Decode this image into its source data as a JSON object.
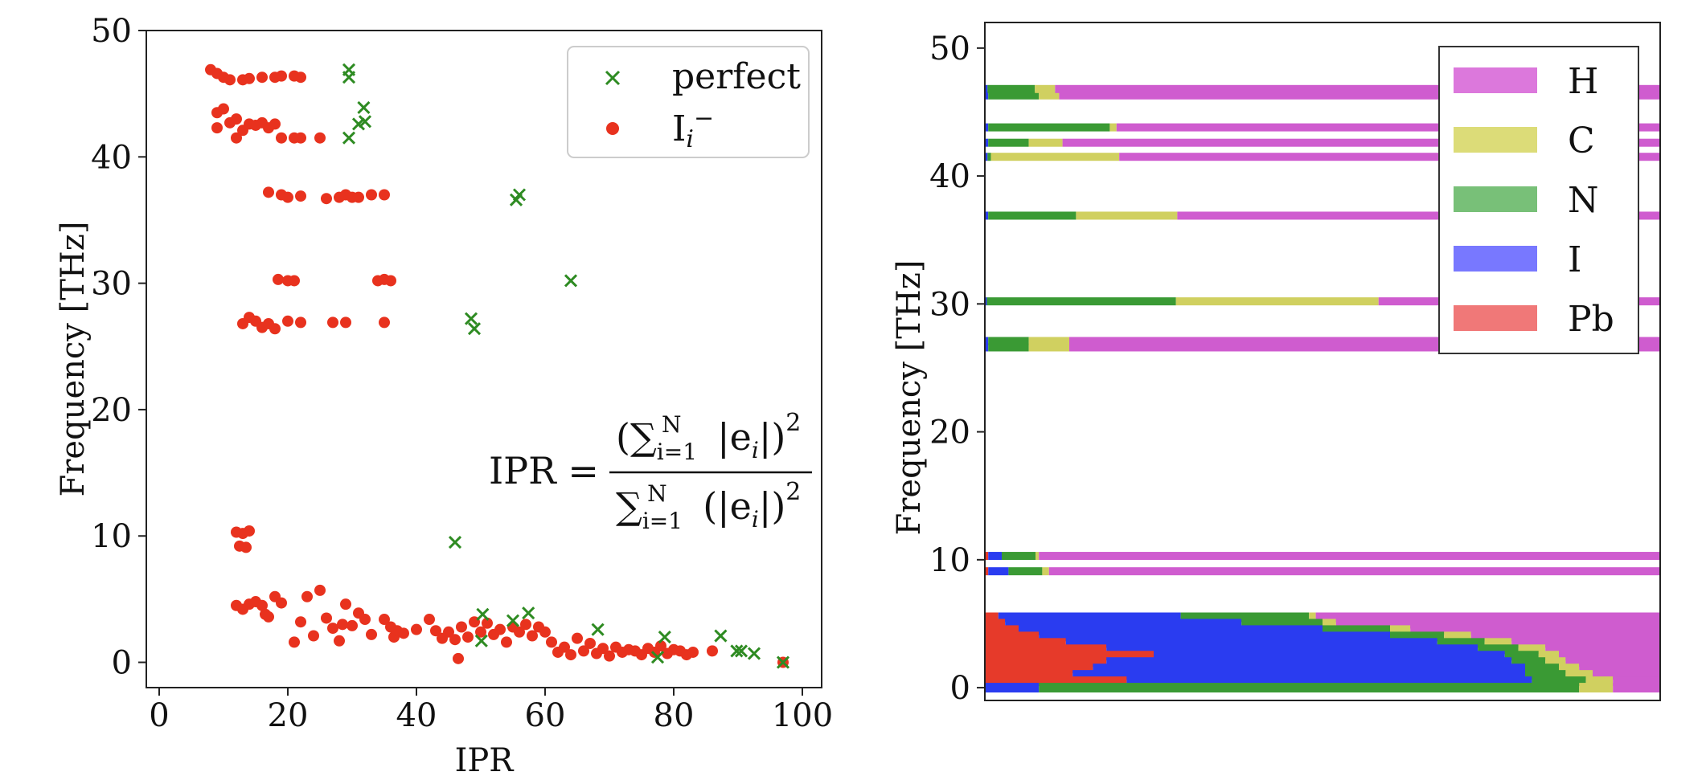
{
  "chart_data": [
    {
      "type": "scatter",
      "xlabel": "IPR",
      "ylabel": "Frequency [THz]",
      "xlim": [
        -2,
        103
      ],
      "ylim": [
        -2,
        50
      ],
      "xticks": [
        0,
        20,
        40,
        60,
        80,
        100
      ],
      "yticks": [
        0,
        10,
        20,
        30,
        40,
        50
      ],
      "legend_position": "top-right",
      "annotation": "IPR = (∑ᵢ₌₁ᴺ |eᵢ|)² / ∑ᵢ₌₁ᴺ (|eᵢ|)²",
      "series": [
        {
          "name": "perfect",
          "marker": "x",
          "color": "#2e8b22",
          "points": [
            [
              29.5,
              46.9
            ],
            [
              29.5,
              46.3
            ],
            [
              29.5,
              41.5
            ],
            [
              31,
              42.6
            ],
            [
              31.8,
              43.9
            ],
            [
              32,
              42.8
            ],
            [
              55.5,
              36.6
            ],
            [
              56,
              37.0
            ],
            [
              64,
              30.2
            ],
            [
              48.5,
              27.2
            ],
            [
              49,
              26.4
            ],
            [
              46,
              9.5
            ],
            [
              50.3,
              3.8
            ],
            [
              50.1,
              1.7
            ],
            [
              55,
              3.3
            ],
            [
              57.4,
              3.9
            ],
            [
              68.2,
              2.6
            ],
            [
              77.5,
              0.4
            ],
            [
              78.6,
              2.0
            ],
            [
              87.3,
              2.1
            ],
            [
              89.8,
              0.9
            ],
            [
              90.5,
              0.9
            ],
            [
              92.5,
              0.7
            ],
            [
              97,
              0.0
            ]
          ]
        },
        {
          "name": "I_i^-",
          "marker": "o",
          "color": "#e8321e",
          "points": [
            [
              8,
              46.9
            ],
            [
              9,
              46.6
            ],
            [
              10,
              46.3
            ],
            [
              11,
              46.1
            ],
            [
              13,
              46.1
            ],
            [
              14,
              46.2
            ],
            [
              16,
              46.3
            ],
            [
              18,
              46.3
            ],
            [
              19,
              46.4
            ],
            [
              21,
              46.4
            ],
            [
              22,
              46.3
            ],
            [
              9,
              43.5
            ],
            [
              10,
              43.8
            ],
            [
              9,
              42.3
            ],
            [
              11,
              42.7
            ],
            [
              12,
              43.0
            ],
            [
              13,
              42.1
            ],
            [
              14,
              42.6
            ],
            [
              15,
              42.5
            ],
            [
              16,
              42.7
            ],
            [
              17,
              42.3
            ],
            [
              18,
              42.6
            ],
            [
              12,
              41.5
            ],
            [
              19,
              41.5
            ],
            [
              21,
              41.5
            ],
            [
              22,
              41.5
            ],
            [
              25,
              41.5
            ],
            [
              17,
              37.2
            ],
            [
              19,
              37.0
            ],
            [
              20,
              36.8
            ],
            [
              22,
              36.9
            ],
            [
              26,
              36.7
            ],
            [
              28,
              36.8
            ],
            [
              29,
              37.0
            ],
            [
              30,
              36.8
            ],
            [
              31,
              36.8
            ],
            [
              33,
              37.0
            ],
            [
              35,
              37.0
            ],
            [
              18.5,
              30.3
            ],
            [
              20,
              30.2
            ],
            [
              21,
              30.2
            ],
            [
              34,
              30.2
            ],
            [
              35,
              30.3
            ],
            [
              36,
              30.2
            ],
            [
              13,
              26.8
            ],
            [
              14,
              27.3
            ],
            [
              15,
              27.0
            ],
            [
              16,
              26.5
            ],
            [
              17,
              26.8
            ],
            [
              18,
              26.4
            ],
            [
              20,
              27.0
            ],
            [
              22,
              26.9
            ],
            [
              27,
              26.9
            ],
            [
              29,
              26.9
            ],
            [
              35,
              26.9
            ],
            [
              12,
              10.3
            ],
            [
              13,
              10.2
            ],
            [
              14,
              10.4
            ],
            [
              12.5,
              9.2
            ],
            [
              13.5,
              9.1
            ],
            [
              12,
              4.5
            ],
            [
              13,
              4.2
            ],
            [
              14,
              4.6
            ],
            [
              15,
              4.8
            ],
            [
              16,
              4.5
            ],
            [
              16.5,
              3.8
            ],
            [
              17,
              3.6
            ],
            [
              18,
              5.2
            ],
            [
              19,
              4.7
            ],
            [
              21,
              1.6
            ],
            [
              22,
              3.2
            ],
            [
              23,
              5.2
            ],
            [
              24,
              2.1
            ],
            [
              25,
              5.7
            ],
            [
              26,
              3.5
            ],
            [
              27,
              2.7
            ],
            [
              28,
              1.7
            ],
            [
              28.5,
              3.0
            ],
            [
              29,
              4.6
            ],
            [
              30,
              2.9
            ],
            [
              31,
              3.9
            ],
            [
              32,
              3.4
            ],
            [
              33,
              2.2
            ],
            [
              35,
              3.4
            ],
            [
              36,
              2.8
            ],
            [
              36.5,
              2.0
            ],
            [
              37,
              2.5
            ],
            [
              38,
              2.3
            ],
            [
              40,
              2.6
            ],
            [
              42,
              3.4
            ],
            [
              43,
              2.5
            ],
            [
              44,
              1.9
            ],
            [
              45,
              2.4
            ],
            [
              46,
              1.8
            ],
            [
              46.5,
              0.3
            ],
            [
              47,
              2.8
            ],
            [
              48,
              2.0
            ],
            [
              49,
              3.2
            ],
            [
              50,
              2.4
            ],
            [
              51,
              3.1
            ],
            [
              52,
              2.2
            ],
            [
              53,
              2.6
            ],
            [
              54,
              1.6
            ],
            [
              55,
              2.8
            ],
            [
              56,
              2.4
            ],
            [
              57,
              3.0
            ],
            [
              58,
              2.1
            ],
            [
              59,
              2.8
            ],
            [
              60,
              2.4
            ],
            [
              61,
              1.6
            ],
            [
              62,
              0.8
            ],
            [
              63,
              1.2
            ],
            [
              64,
              0.6
            ],
            [
              65,
              1.9
            ],
            [
              66,
              0.9
            ],
            [
              67,
              1.5
            ],
            [
              68,
              0.7
            ],
            [
              69,
              1.1
            ],
            [
              70,
              0.5
            ],
            [
              71,
              1.2
            ],
            [
              72,
              0.8
            ],
            [
              73,
              1.0
            ],
            [
              74,
              0.9
            ],
            [
              75,
              0.6
            ],
            [
              76,
              1.1
            ],
            [
              77,
              0.8
            ],
            [
              78,
              1.3
            ],
            [
              79,
              0.7
            ],
            [
              80,
              1.0
            ],
            [
              81,
              0.9
            ],
            [
              82,
              0.6
            ],
            [
              83,
              0.8
            ],
            [
              86,
              0.9
            ],
            [
              97,
              0.0
            ]
          ]
        }
      ]
    },
    {
      "type": "area",
      "ylabel": "Frequency [THz]",
      "ylim": [
        -1,
        52
      ],
      "yticks": [
        0,
        10,
        20,
        30,
        40,
        50
      ],
      "legend_position": "top-right",
      "legend": [
        {
          "name": "H",
          "color": "#dc78dc"
        },
        {
          "name": "C",
          "color": "#dcdc78"
        },
        {
          "name": "N",
          "color": "#78c078"
        },
        {
          "name": "I",
          "color": "#7878ff"
        },
        {
          "name": "Pb",
          "color": "#f07878"
        }
      ],
      "bands": [
        {
          "freq": 46.3,
          "contrib": {
            "Pb": 0,
            "I": 0.005,
            "N": 0.075,
            "C": 0.03,
            "H": 0.89
          }
        },
        {
          "freq": 46.8,
          "contrib": {
            "Pb": 0,
            "I": 0.004,
            "N": 0.07,
            "C": 0.03,
            "H": 0.896
          }
        },
        {
          "freq": 43.8,
          "contrib": {
            "Pb": 0,
            "I": 0.005,
            "N": 0.18,
            "C": 0.01,
            "H": 0.805
          }
        },
        {
          "freq": 42.6,
          "contrib": {
            "Pb": 0,
            "I": 0.005,
            "N": 0.06,
            "C": 0.05,
            "H": 0.885
          }
        },
        {
          "freq": 41.5,
          "contrib": {
            "Pb": 0,
            "I": 0.004,
            "N": 0.005,
            "C": 0.19,
            "H": 0.801
          }
        },
        {
          "freq": 36.9,
          "contrib": {
            "Pb": 0,
            "I": 0.005,
            "N": 0.13,
            "C": 0.15,
            "H": 0.715
          }
        },
        {
          "freq": 30.2,
          "contrib": {
            "Pb": 0,
            "I": 0.003,
            "N": 0.28,
            "C": 0.3,
            "H": 0.417
          }
        },
        {
          "freq": 27.1,
          "contrib": {
            "Pb": 0,
            "I": 0.005,
            "N": 0.06,
            "C": 0.06,
            "H": 0.875
          }
        },
        {
          "freq": 26.6,
          "contrib": {
            "Pb": 0,
            "I": 0.005,
            "N": 0.06,
            "C": 0.06,
            "H": 0.875
          }
        },
        {
          "freq": 10.3,
          "contrib": {
            "Pb": 0.005,
            "I": 0.02,
            "N": 0.05,
            "C": 0.005,
            "H": 0.92
          }
        },
        {
          "freq": 9.1,
          "contrib": {
            "Pb": 0.005,
            "I": 0.03,
            "N": 0.05,
            "C": 0.01,
            "H": 0.905
          }
        },
        {
          "freq": 5.5,
          "contrib": {
            "Pb": 0.02,
            "I": 0.27,
            "N": 0.19,
            "C": 0.01,
            "H": 0.51
          }
        },
        {
          "freq": 5.0,
          "contrib": {
            "Pb": 0.03,
            "I": 0.35,
            "N": 0.12,
            "C": 0.02,
            "H": 0.48
          }
        },
        {
          "freq": 4.5,
          "contrib": {
            "Pb": 0.05,
            "I": 0.45,
            "N": 0.1,
            "C": 0.03,
            "H": 0.37
          }
        },
        {
          "freq": 4.0,
          "contrib": {
            "Pb": 0.08,
            "I": 0.52,
            "N": 0.08,
            "C": 0.04,
            "H": 0.28
          }
        },
        {
          "freq": 3.5,
          "contrib": {
            "Pb": 0.12,
            "I": 0.55,
            "N": 0.07,
            "C": 0.04,
            "H": 0.22
          }
        },
        {
          "freq": 3.0,
          "contrib": {
            "Pb": 0.18,
            "I": 0.55,
            "N": 0.06,
            "C": 0.04,
            "H": 0.17
          }
        },
        {
          "freq": 2.5,
          "contrib": {
            "Pb": 0.25,
            "I": 0.52,
            "N": 0.05,
            "C": 0.03,
            "H": 0.15
          }
        },
        {
          "freq": 2.0,
          "contrib": {
            "Pb": 0.18,
            "I": 0.6,
            "N": 0.05,
            "C": 0.03,
            "H": 0.14
          }
        },
        {
          "freq": 1.5,
          "contrib": {
            "Pb": 0.16,
            "I": 0.64,
            "N": 0.05,
            "C": 0.03,
            "H": 0.12
          }
        },
        {
          "freq": 1.0,
          "contrib": {
            "Pb": 0.13,
            "I": 0.67,
            "N": 0.06,
            "C": 0.04,
            "H": 0.1
          }
        },
        {
          "freq": 0.5,
          "contrib": {
            "Pb": 0.21,
            "I": 0.6,
            "N": 0.08,
            "C": 0.04,
            "H": 0.07
          }
        },
        {
          "freq": 0.0,
          "contrib": {
            "Pb": 0.0,
            "I": 0.08,
            "N": 0.8,
            "C": 0.05,
            "H": 0.07
          }
        }
      ]
    }
  ]
}
